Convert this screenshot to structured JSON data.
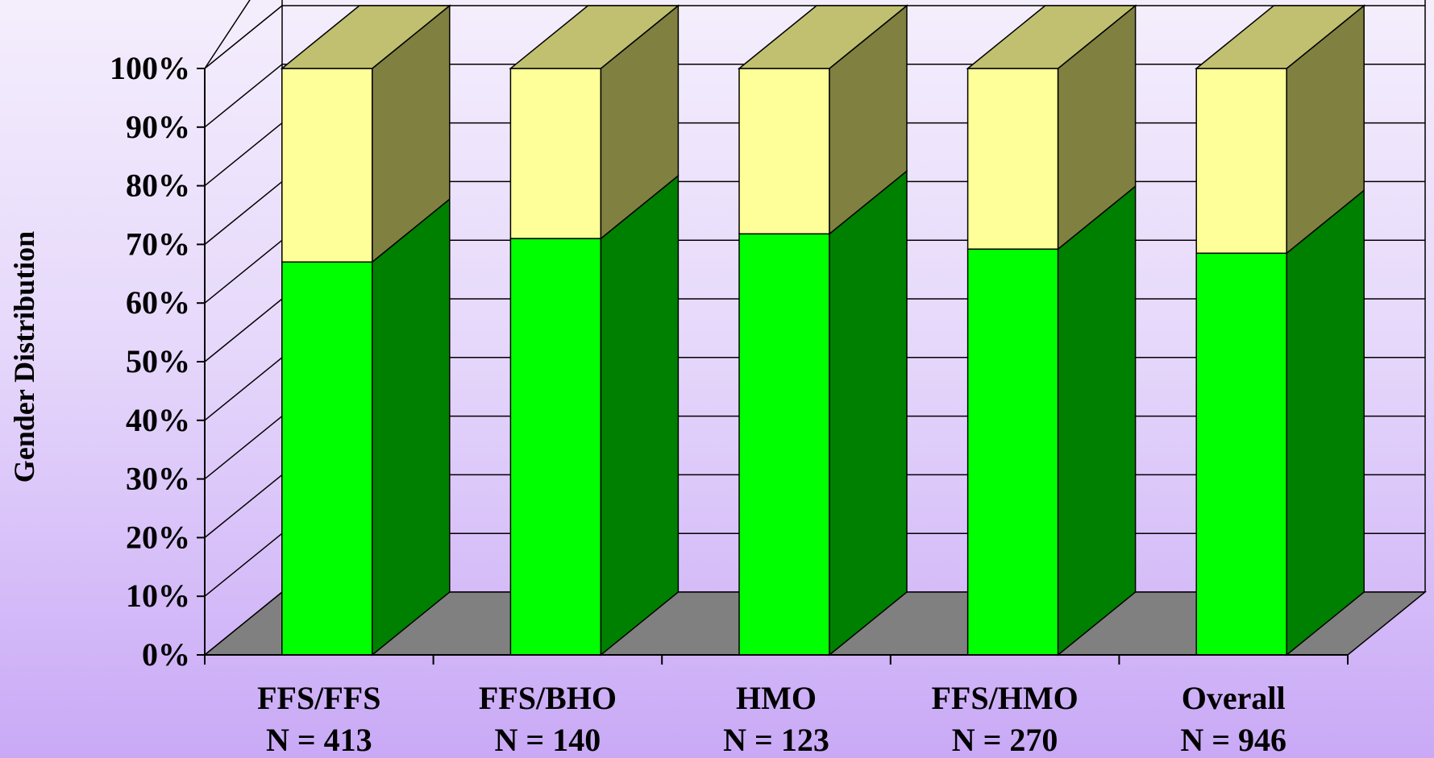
{
  "chart_data": {
    "type": "bar",
    "stacked": true,
    "three_d": true,
    "title": "",
    "xlabel": "",
    "ylabel": "Gender Distribution",
    "ylim": [
      0,
      100
    ],
    "yticks": [
      "0%",
      "10%",
      "20%",
      "30%",
      "40%",
      "50%",
      "60%",
      "70%",
      "80%",
      "90%",
      "100%"
    ],
    "categories": [
      {
        "name": "FFS/FFS",
        "n": "N = 413"
      },
      {
        "name": "FFS/BHO",
        "n": "N = 140"
      },
      {
        "name": "HMO",
        "n": "N = 123"
      },
      {
        "name": "FFS/HMO",
        "n": "N = 270"
      },
      {
        "name": "Overall",
        "n": "N = 946"
      }
    ],
    "series": [
      {
        "values": [
          67,
          71,
          71.8,
          69.2,
          68.5
        ],
        "color": "#00ff00",
        "side_color": "#008000"
      },
      {
        "values": [
          33,
          29,
          28.2,
          30.8,
          31.5
        ],
        "color": "#ffff99",
        "side_color": "#808040",
        "top_color": "#c0c070"
      }
    ],
    "grid": true,
    "floor_color": "#808080"
  }
}
